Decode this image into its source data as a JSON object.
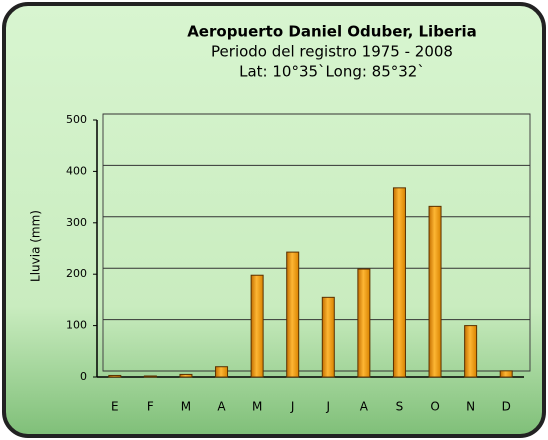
{
  "chart_data": {
    "type": "bar",
    "title": "Aeropuerto Daniel Oduber, Liberia",
    "subtitle": "Periodo del registro  1975 - 2008",
    "location": "Lat: 10°35`Long: 85°32`",
    "y_label": "Lluvia (mm)",
    "categories": [
      "E",
      "F",
      "M",
      "A",
      "M",
      "J",
      "J",
      "A",
      "S",
      "O",
      "N",
      "D"
    ],
    "values": [
      3,
      2,
      5,
      20,
      198,
      243,
      155,
      210,
      368,
      332,
      100,
      12
    ],
    "color": "#f7a21b",
    "ylim": [
      0,
      500
    ],
    "yticks": [
      0,
      100,
      200,
      300,
      400,
      500
    ],
    "grid": true
  }
}
